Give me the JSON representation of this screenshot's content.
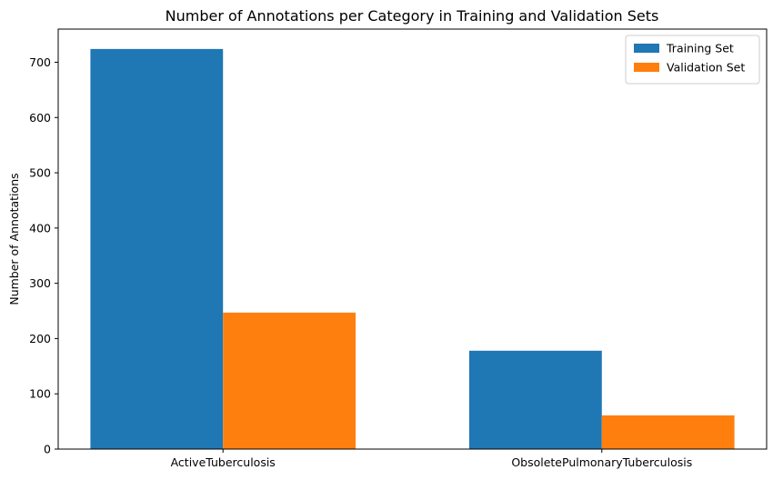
{
  "chart_data": {
    "type": "bar",
    "title": "Number of Annotations per Category in Training and Validation Sets",
    "xlabel": "",
    "ylabel": "Number of Annotations",
    "categories": [
      "ActiveTuberculosis",
      "ObsoletePulmonaryTuberculosis"
    ],
    "series": [
      {
        "name": "Training Set",
        "values": [
          724,
          178
        ],
        "color": "#1f77b4"
      },
      {
        "name": "Validation Set",
        "values": [
          247,
          61
        ],
        "color": "#ff7f0e"
      }
    ],
    "ylim": [
      0,
      760
    ],
    "yticks": [
      0,
      100,
      200,
      300,
      400,
      500,
      600,
      700
    ],
    "grid": false,
    "legend_position": "top-right"
  }
}
